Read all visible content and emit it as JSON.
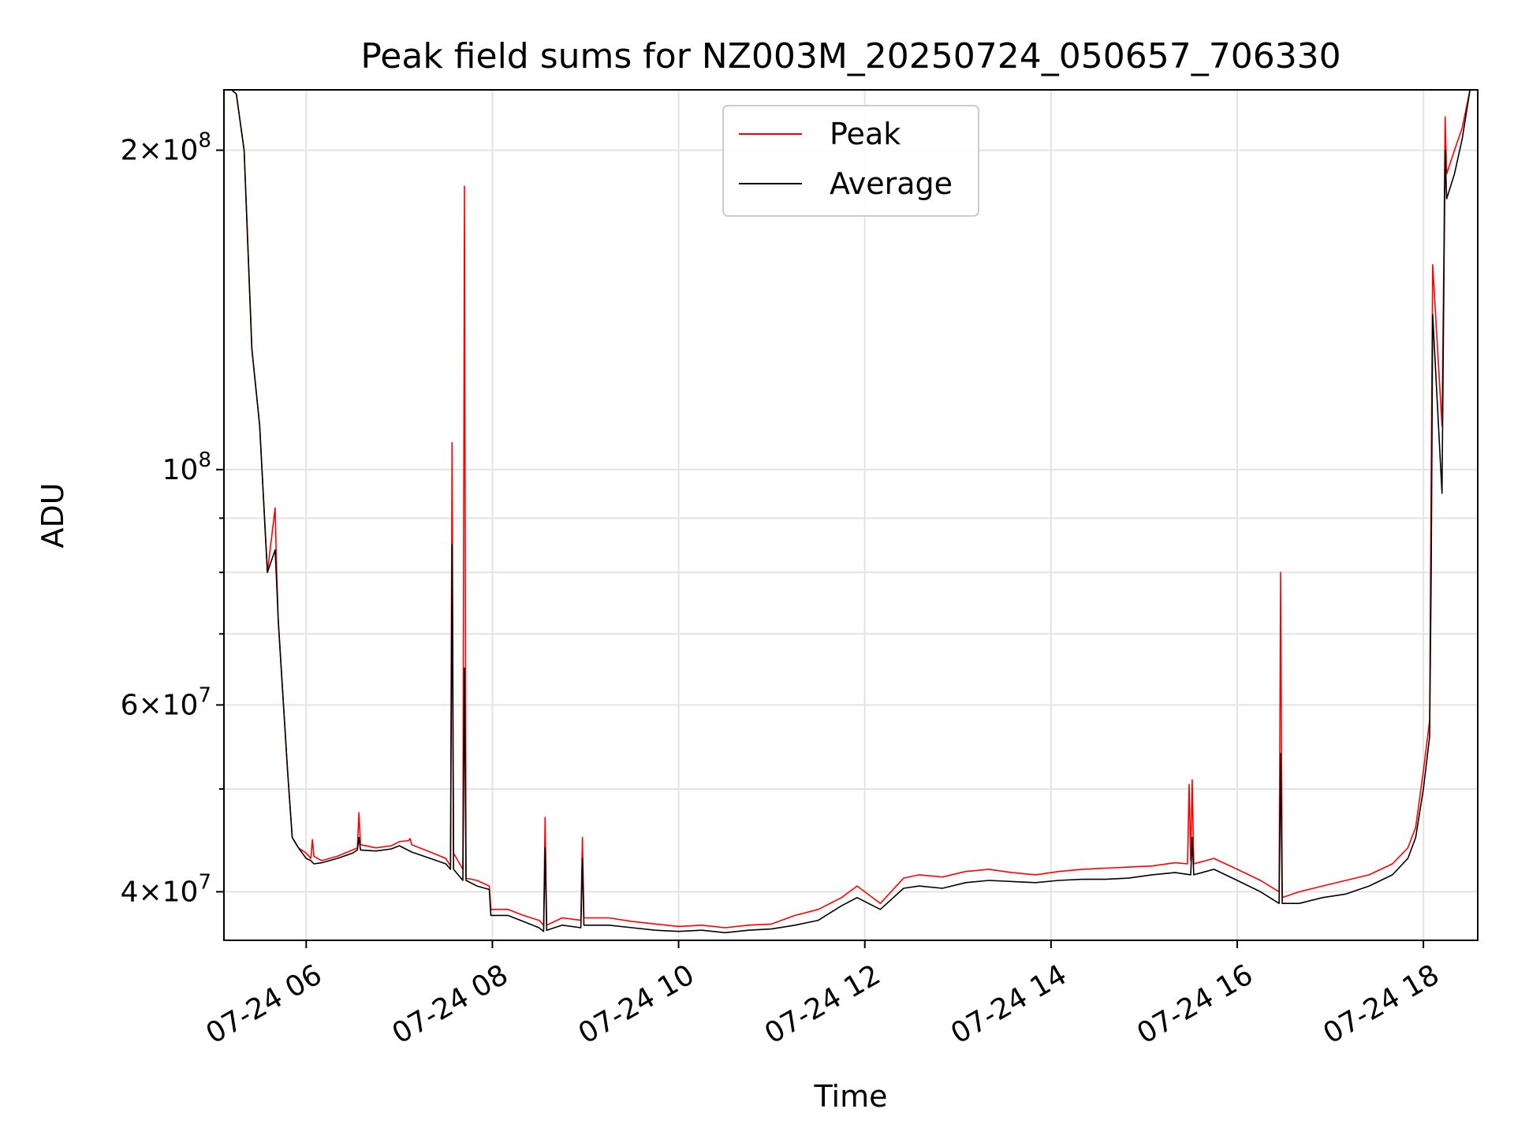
{
  "chart_data": {
    "type": "line",
    "title": "Peak field sums for NZ003M_20250724_050657_706330",
    "xlabel": "Time",
    "ylabel": "ADU",
    "yscale": "log",
    "xlim": [
      "2025-07-24 05:07",
      "2025-07-24 18:35"
    ],
    "ylim": [
      36000000,
      228000000
    ],
    "grid": true,
    "legend_location": "upper center",
    "x_ticks": [
      {
        "value": "2025-07-24 06:00",
        "label": "07-24 06"
      },
      {
        "value": "2025-07-24 08:00",
        "label": "07-24 08"
      },
      {
        "value": "2025-07-24 10:00",
        "label": "07-24 10"
      },
      {
        "value": "2025-07-24 12:00",
        "label": "07-24 12"
      },
      {
        "value": "2025-07-24 14:00",
        "label": "07-24 14"
      },
      {
        "value": "2025-07-24 16:00",
        "label": "07-24 16"
      },
      {
        "value": "2025-07-24 18:00",
        "label": "07-24 18"
      }
    ],
    "y_major_ticks": [
      {
        "value": 40000000,
        "mantissa": "4",
        "exponent": "7"
      },
      {
        "value": 60000000,
        "mantissa": "6",
        "exponent": "7"
      },
      {
        "value": 100000000,
        "mantissa": "",
        "exponent": "8"
      },
      {
        "value": 200000000,
        "mantissa": "2",
        "exponent": "8"
      }
    ],
    "y_minor_ticks": [
      50000000,
      70000000,
      80000000,
      90000000
    ],
    "series": [
      {
        "name": "Peak",
        "color": "#ff0000",
        "x": [
          "2025-07-24 05:07",
          "2025-07-24 05:12",
          "2025-07-24 05:15",
          "2025-07-24 05:20",
          "2025-07-24 05:25",
          "2025-07-24 05:30",
          "2025-07-24 05:35",
          "2025-07-24 05:40",
          "2025-07-24 05:41",
          "2025-07-24 05:42",
          "2025-07-24 05:48",
          "2025-07-24 05:51",
          "2025-07-24 05:55",
          "2025-07-24 06:00",
          "2025-07-24 06:03",
          "2025-07-24 06:04",
          "2025-07-24 06:05",
          "2025-07-24 06:10",
          "2025-07-24 06:20",
          "2025-07-24 06:30",
          "2025-07-24 06:33",
          "2025-07-24 06:34",
          "2025-07-24 06:35",
          "2025-07-24 06:45",
          "2025-07-24 06:55",
          "2025-07-24 07:00",
          "2025-07-24 07:06",
          "2025-07-24 07:07",
          "2025-07-24 07:08",
          "2025-07-24 07:20",
          "2025-07-24 07:30",
          "2025-07-24 07:33",
          "2025-07-24 07:34",
          "2025-07-24 07:35",
          "2025-07-24 07:41",
          "2025-07-24 07:42",
          "2025-07-24 07:43",
          "2025-07-24 07:50",
          "2025-07-24 07:58",
          "2025-07-24 07:59",
          "2025-07-24 08:10",
          "2025-07-24 08:20",
          "2025-07-24 08:30",
          "2025-07-24 08:33",
          "2025-07-24 08:34",
          "2025-07-24 08:35",
          "2025-07-24 08:45",
          "2025-07-24 08:57",
          "2025-07-24 08:58",
          "2025-07-24 08:59",
          "2025-07-24 09:15",
          "2025-07-24 09:30",
          "2025-07-24 09:45",
          "2025-07-24 10:00",
          "2025-07-24 10:15",
          "2025-07-24 10:30",
          "2025-07-24 10:45",
          "2025-07-24 11:00",
          "2025-07-24 11:15",
          "2025-07-24 11:30",
          "2025-07-24 11:45",
          "2025-07-24 11:55",
          "2025-07-24 12:10",
          "2025-07-24 12:25",
          "2025-07-24 12:35",
          "2025-07-24 12:50",
          "2025-07-24 13:05",
          "2025-07-24 13:20",
          "2025-07-24 13:35",
          "2025-07-24 13:50",
          "2025-07-24 14:05",
          "2025-07-24 14:20",
          "2025-07-24 14:35",
          "2025-07-24 14:50",
          "2025-07-24 15:05",
          "2025-07-24 15:20",
          "2025-07-24 15:28",
          "2025-07-24 15:29",
          "2025-07-24 15:30",
          "2025-07-24 15:31",
          "2025-07-24 15:32",
          "2025-07-24 15:45",
          "2025-07-24 16:00",
          "2025-07-24 16:15",
          "2025-07-24 16:27",
          "2025-07-24 16:28",
          "2025-07-24 16:29",
          "2025-07-24 16:40",
          "2025-07-24 16:55",
          "2025-07-24 17:10",
          "2025-07-24 17:25",
          "2025-07-24 17:40",
          "2025-07-24 17:50",
          "2025-07-24 17:55",
          "2025-07-24 18:00",
          "2025-07-24 18:04",
          "2025-07-24 18:05",
          "2025-07-24 18:06",
          "2025-07-24 18:12",
          "2025-07-24 18:13",
          "2025-07-24 18:14",
          "2025-07-24 18:15",
          "2025-07-24 18:20",
          "2025-07-24 18:25",
          "2025-07-24 18:30",
          "2025-07-24 18:35"
        ],
        "y": [
          228000000,
          228000000,
          226000000,
          200000000,
          130000000,
          110000000,
          80000000,
          92000000,
          80000000,
          72000000,
          52000000,
          45000000,
          44000000,
          43500000,
          43000000,
          44800000,
          43200000,
          42800000,
          43200000,
          43800000,
          44000000,
          47500000,
          44300000,
          44000000,
          44200000,
          44600000,
          44700000,
          44900000,
          44300000,
          43600000,
          43000000,
          42300000,
          106000000,
          43500000,
          42000000,
          185000000,
          41200000,
          41000000,
          40500000,
          38500000,
          38500000,
          38000000,
          37600000,
          37200000,
          47000000,
          37200000,
          37800000,
          37600000,
          45000000,
          37800000,
          37800000,
          37500000,
          37300000,
          37100000,
          37200000,
          37000000,
          37200000,
          37300000,
          38000000,
          38500000,
          39500000,
          40500000,
          39000000,
          41200000,
          41500000,
          41300000,
          41800000,
          42000000,
          41700000,
          41500000,
          41800000,
          42000000,
          42100000,
          42200000,
          42300000,
          42600000,
          42500000,
          50500000,
          42800000,
          51000000,
          42500000,
          43000000,
          42000000,
          41000000,
          40000000,
          80000000,
          39500000,
          40000000,
          40500000,
          41000000,
          41500000,
          42500000,
          44000000,
          46000000,
          52000000,
          58000000,
          100000000,
          156000000,
          110000000,
          150000000,
          215000000,
          190000000,
          200000000,
          210000000,
          228000000,
          228000000
        ]
      },
      {
        "name": "Average",
        "color": "#000000",
        "x": [
          "2025-07-24 05:07",
          "2025-07-24 05:12",
          "2025-07-24 05:15",
          "2025-07-24 05:20",
          "2025-07-24 05:25",
          "2025-07-24 05:30",
          "2025-07-24 05:35",
          "2025-07-24 05:40",
          "2025-07-24 05:41",
          "2025-07-24 05:42",
          "2025-07-24 05:48",
          "2025-07-24 05:51",
          "2025-07-24 05:55",
          "2025-07-24 06:00",
          "2025-07-24 06:03",
          "2025-07-24 06:05",
          "2025-07-24 06:10",
          "2025-07-24 06:20",
          "2025-07-24 06:30",
          "2025-07-24 06:33",
          "2025-07-24 06:34",
          "2025-07-24 06:35",
          "2025-07-24 06:45",
          "2025-07-24 06:55",
          "2025-07-24 07:00",
          "2025-07-24 07:08",
          "2025-07-24 07:20",
          "2025-07-24 07:30",
          "2025-07-24 07:33",
          "2025-07-24 07:34",
          "2025-07-24 07:35",
          "2025-07-24 07:41",
          "2025-07-24 07:42",
          "2025-07-24 07:43",
          "2025-07-24 07:50",
          "2025-07-24 07:58",
          "2025-07-24 07:59",
          "2025-07-24 08:10",
          "2025-07-24 08:20",
          "2025-07-24 08:30",
          "2025-07-24 08:33",
          "2025-07-24 08:34",
          "2025-07-24 08:35",
          "2025-07-24 08:45",
          "2025-07-24 08:57",
          "2025-07-24 08:58",
          "2025-07-24 08:59",
          "2025-07-24 09:15",
          "2025-07-24 09:30",
          "2025-07-24 09:45",
          "2025-07-24 10:00",
          "2025-07-24 10:15",
          "2025-07-24 10:30",
          "2025-07-24 10:45",
          "2025-07-24 11:00",
          "2025-07-24 11:15",
          "2025-07-24 11:30",
          "2025-07-24 11:45",
          "2025-07-24 11:55",
          "2025-07-24 12:10",
          "2025-07-24 12:25",
          "2025-07-24 12:35",
          "2025-07-24 12:50",
          "2025-07-24 13:05",
          "2025-07-24 13:20",
          "2025-07-24 13:35",
          "2025-07-24 13:50",
          "2025-07-24 14:05",
          "2025-07-24 14:20",
          "2025-07-24 14:35",
          "2025-07-24 14:50",
          "2025-07-24 15:05",
          "2025-07-24 15:20",
          "2025-07-24 15:30",
          "2025-07-24 15:31",
          "2025-07-24 15:32",
          "2025-07-24 15:45",
          "2025-07-24 16:00",
          "2025-07-24 16:15",
          "2025-07-24 16:27",
          "2025-07-24 16:28",
          "2025-07-24 16:29",
          "2025-07-24 16:40",
          "2025-07-24 16:55",
          "2025-07-24 17:10",
          "2025-07-24 17:25",
          "2025-07-24 17:40",
          "2025-07-24 17:50",
          "2025-07-24 17:55",
          "2025-07-24 18:00",
          "2025-07-24 18:04",
          "2025-07-24 18:05",
          "2025-07-24 18:06",
          "2025-07-24 18:12",
          "2025-07-24 18:13",
          "2025-07-24 18:14",
          "2025-07-24 18:15",
          "2025-07-24 18:20",
          "2025-07-24 18:25",
          "2025-07-24 18:30",
          "2025-07-24 18:35"
        ],
        "y": [
          228000000,
          228000000,
          226000000,
          200000000,
          130000000,
          110000000,
          80000000,
          84000000,
          78000000,
          72000000,
          52000000,
          45000000,
          44000000,
          43000000,
          42800000,
          42500000,
          42600000,
          43000000,
          43500000,
          43800000,
          45000000,
          43800000,
          43700000,
          43900000,
          44200000,
          43600000,
          43000000,
          42500000,
          42000000,
          85000000,
          42000000,
          41000000,
          65000000,
          41000000,
          40500000,
          40200000,
          38000000,
          38000000,
          37500000,
          37000000,
          36700000,
          44000000,
          36800000,
          37200000,
          37000000,
          43000000,
          37200000,
          37200000,
          37000000,
          36800000,
          36700000,
          36800000,
          36600000,
          36800000,
          36900000,
          37200000,
          37600000,
          38800000,
          39500000,
          38500000,
          40300000,
          40500000,
          40300000,
          40800000,
          41000000,
          40900000,
          40800000,
          41000000,
          41100000,
          41100000,
          41200000,
          41500000,
          41700000,
          41500000,
          45000000,
          41500000,
          42000000,
          41000000,
          40000000,
          39000000,
          54000000,
          39000000,
          39000000,
          39500000,
          39800000,
          40500000,
          41500000,
          43000000,
          45000000,
          50000000,
          56000000,
          80000000,
          140000000,
          95000000,
          140000000,
          200000000,
          180000000,
          190000000,
          205000000,
          228000000,
          228000000
        ]
      }
    ]
  }
}
